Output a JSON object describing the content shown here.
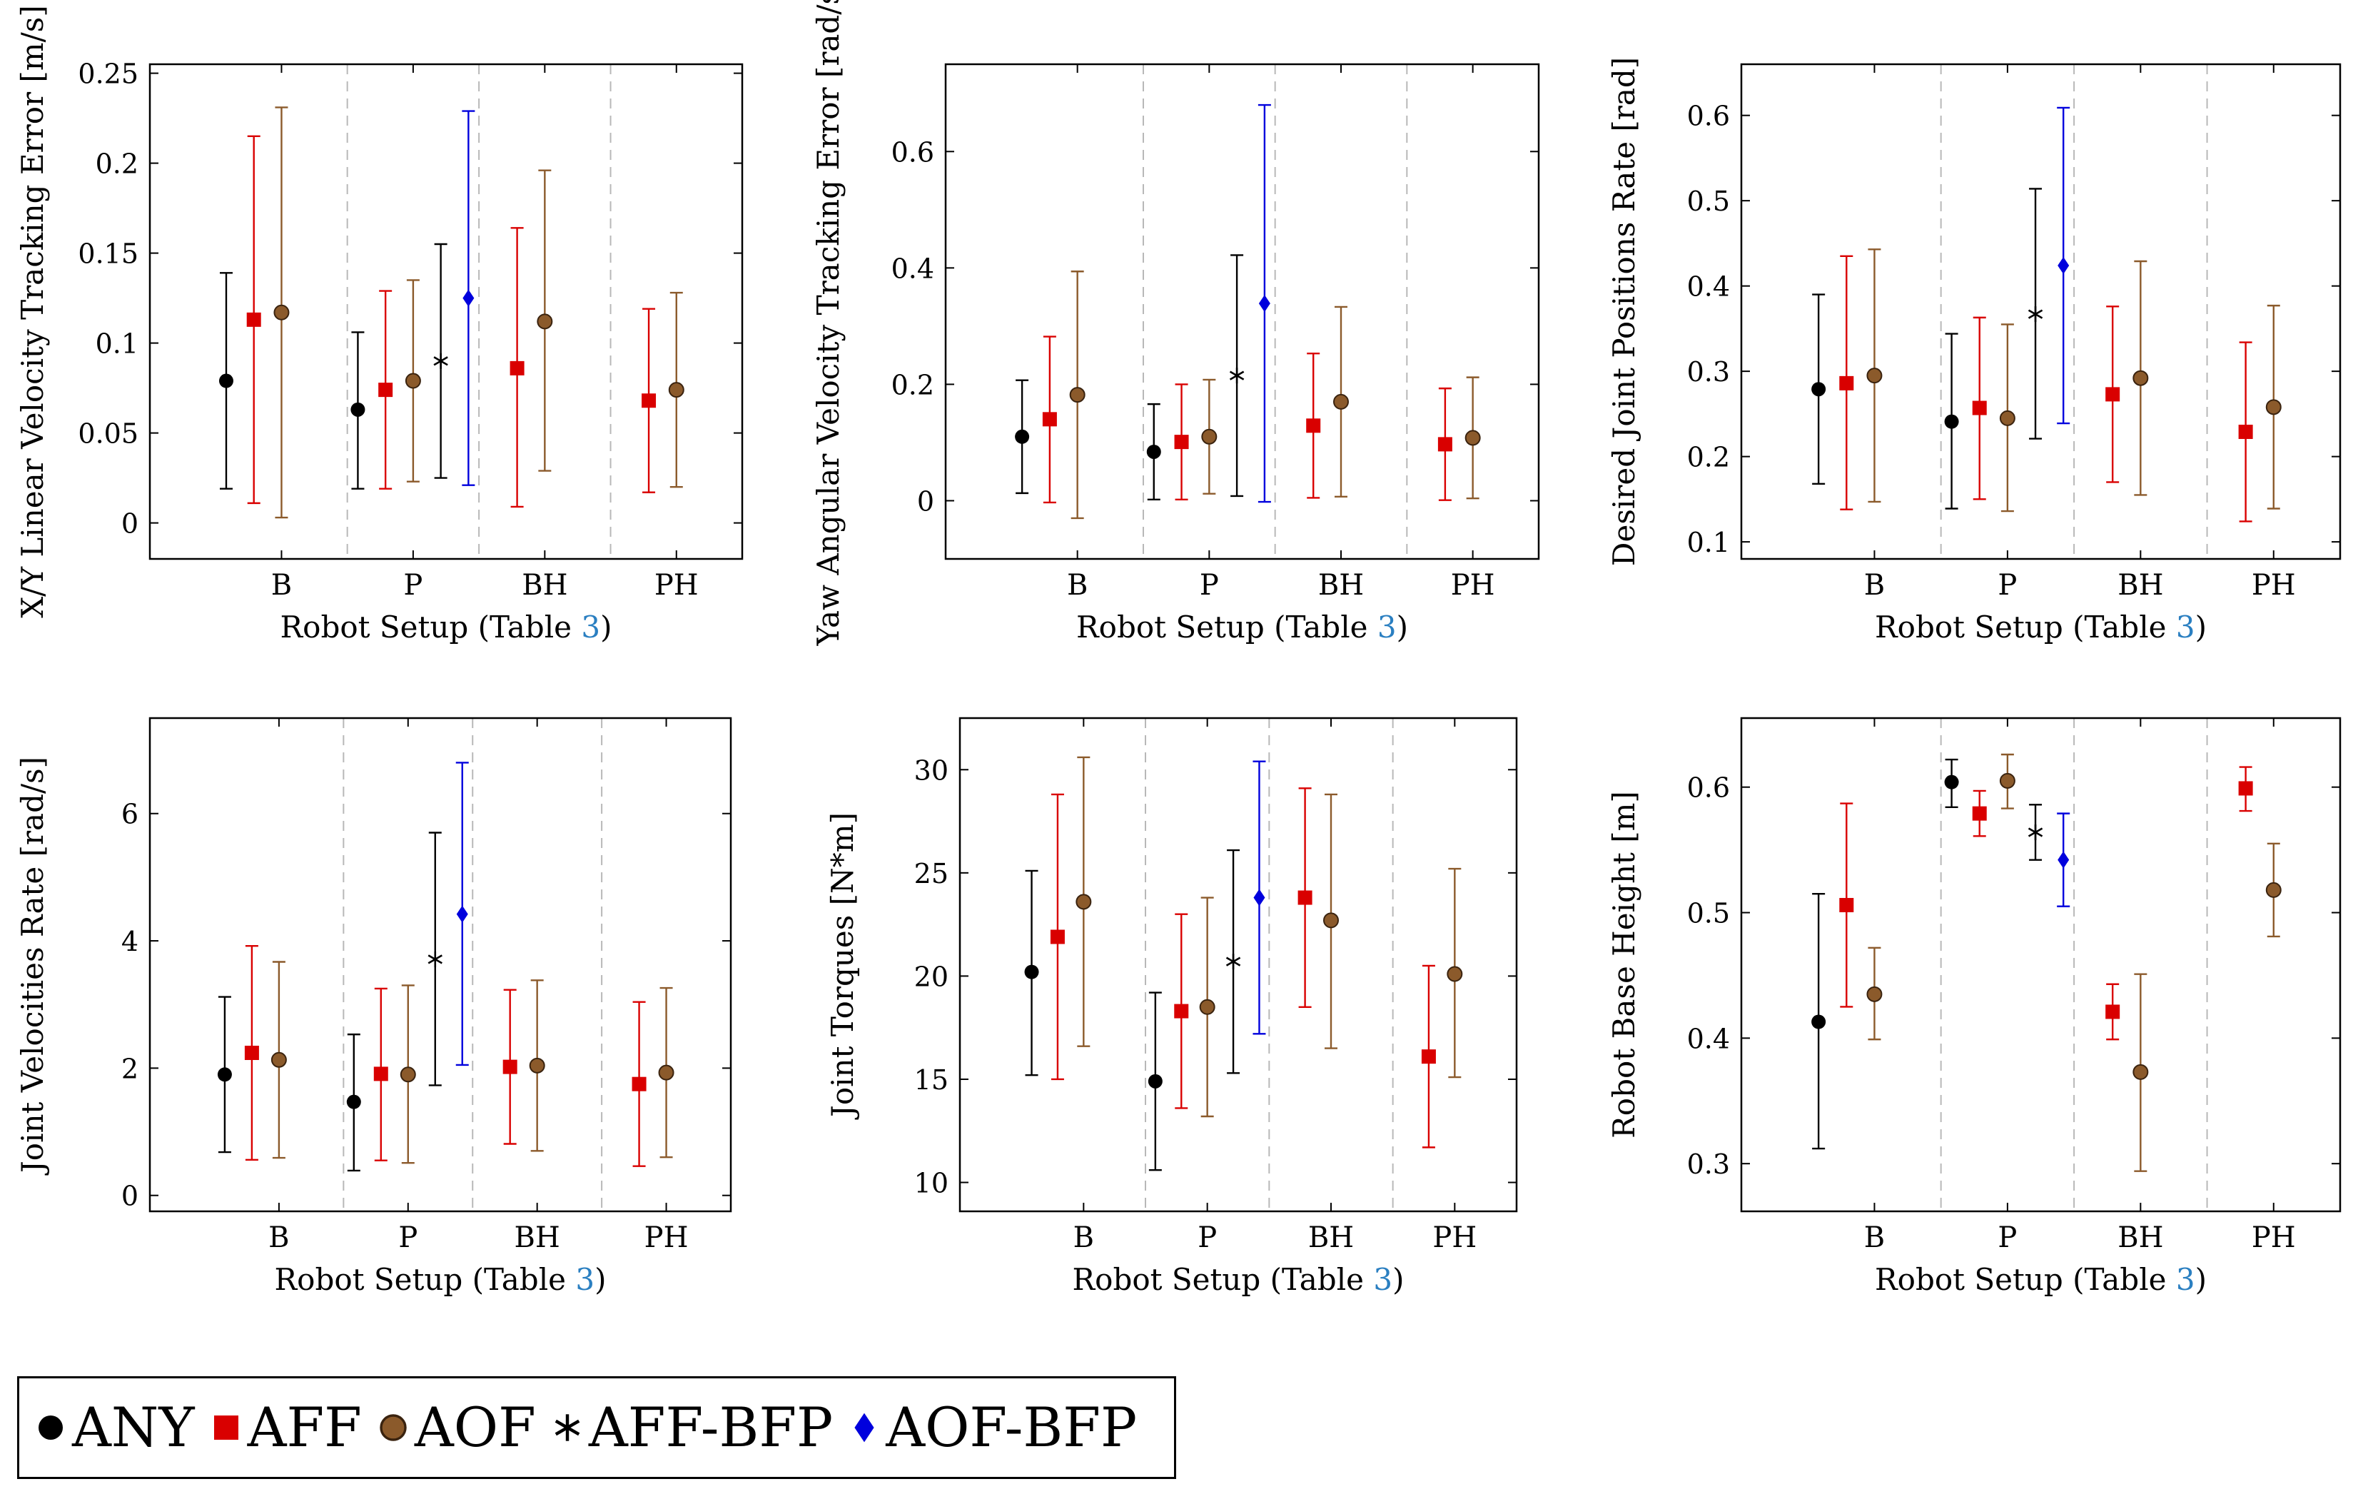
{
  "chart_data": [
    {
      "type": "scatter",
      "ylabel": "X/Y Linear Velocity Tracking Error [m/s]",
      "xlabel_prefix": "Robot Setup (Table ",
      "xlabel_ref": "3",
      "xlabel_suffix": ")",
      "categories": [
        "B",
        "P",
        "BH",
        "PH"
      ],
      "ylim": [
        -0.02,
        0.255
      ],
      "yticks": [
        0,
        0.05,
        0.1,
        0.15,
        0.2,
        0.25
      ],
      "ytick_labels": [
        "0",
        "0.05",
        "0.1",
        "0.15",
        "0.2",
        "0.25"
      ],
      "points": [
        {
          "series": "ANY",
          "category": "B",
          "y": 0.079,
          "low": 0.019,
          "high": 0.139
        },
        {
          "series": "AFF",
          "category": "B",
          "y": 0.113,
          "low": 0.011,
          "high": 0.215
        },
        {
          "series": "AOF",
          "category": "B",
          "y": 0.117,
          "low": 0.003,
          "high": 0.231
        },
        {
          "series": "ANY",
          "category": "P",
          "y": 0.063,
          "low": 0.019,
          "high": 0.106
        },
        {
          "series": "AFF",
          "category": "P",
          "y": 0.074,
          "low": 0.019,
          "high": 0.129
        },
        {
          "series": "AOF",
          "category": "P",
          "y": 0.079,
          "low": 0.023,
          "high": 0.135
        },
        {
          "series": "AFF-BFP",
          "category": "P",
          "y": 0.09,
          "low": 0.025,
          "high": 0.155
        },
        {
          "series": "AOF-BFP",
          "category": "P",
          "y": 0.125,
          "low": 0.021,
          "high": 0.229
        },
        {
          "series": "AFF",
          "category": "BH",
          "y": 0.086,
          "low": 0.009,
          "high": 0.164
        },
        {
          "series": "AOF",
          "category": "BH",
          "y": 0.112,
          "low": 0.029,
          "high": 0.196
        },
        {
          "series": "AFF",
          "category": "PH",
          "y": 0.068,
          "low": 0.017,
          "high": 0.119
        },
        {
          "series": "AOF",
          "category": "PH",
          "y": 0.074,
          "low": 0.02,
          "high": 0.128
        }
      ]
    },
    {
      "type": "scatter",
      "ylabel": "Yaw Angular Velocity Tracking Error [rad/s]",
      "xlabel_prefix": "Robot Setup (Table ",
      "xlabel_ref": "3",
      "xlabel_suffix": ")",
      "categories": [
        "B",
        "P",
        "BH",
        "PH"
      ],
      "ylim": [
        -0.1,
        0.75
      ],
      "yticks": [
        0,
        0.2,
        0.4,
        0.6
      ],
      "ytick_labels": [
        "0",
        "0.2",
        "0.4",
        "0.6"
      ],
      "points": [
        {
          "series": "ANY",
          "category": "B",
          "y": 0.11,
          "low": 0.013,
          "high": 0.207
        },
        {
          "series": "AFF",
          "category": "B",
          "y": 0.14,
          "low": -0.003,
          "high": 0.282
        },
        {
          "series": "AOF",
          "category": "B",
          "y": 0.182,
          "low": -0.03,
          "high": 0.394
        },
        {
          "series": "ANY",
          "category": "P",
          "y": 0.084,
          "low": 0.002,
          "high": 0.166
        },
        {
          "series": "AFF",
          "category": "P",
          "y": 0.101,
          "low": 0.002,
          "high": 0.2
        },
        {
          "series": "AOF",
          "category": "P",
          "y": 0.11,
          "low": 0.012,
          "high": 0.208
        },
        {
          "series": "AFF-BFP",
          "category": "P",
          "y": 0.215,
          "low": 0.008,
          "high": 0.422
        },
        {
          "series": "AOF-BFP",
          "category": "P",
          "y": 0.339,
          "low": -0.002,
          "high": 0.68
        },
        {
          "series": "AFF",
          "category": "BH",
          "y": 0.129,
          "low": 0.005,
          "high": 0.253
        },
        {
          "series": "AOF",
          "category": "BH",
          "y": 0.17,
          "low": 0.007,
          "high": 0.333
        },
        {
          "series": "AFF",
          "category": "PH",
          "y": 0.097,
          "low": 0.001,
          "high": 0.193
        },
        {
          "series": "AOF",
          "category": "PH",
          "y": 0.108,
          "low": 0.004,
          "high": 0.212
        }
      ]
    },
    {
      "type": "scatter",
      "ylabel": "Desired Joint Positions Rate [rad]",
      "xlabel_prefix": "Robot Setup (Table ",
      "xlabel_ref": "3",
      "xlabel_suffix": ")",
      "categories": [
        "B",
        "P",
        "BH",
        "PH"
      ],
      "ylim": [
        0.08,
        0.66
      ],
      "yticks": [
        0.1,
        0.2,
        0.3,
        0.4,
        0.5,
        0.6
      ],
      "ytick_labels": [
        "0.1",
        "0.2",
        "0.3",
        "0.4",
        "0.5",
        "0.6"
      ],
      "points": [
        {
          "series": "ANY",
          "category": "B",
          "y": 0.279,
          "low": 0.168,
          "high": 0.39
        },
        {
          "series": "AFF",
          "category": "B",
          "y": 0.286,
          "low": 0.138,
          "high": 0.435
        },
        {
          "series": "AOF",
          "category": "B",
          "y": 0.295,
          "low": 0.147,
          "high": 0.443
        },
        {
          "series": "ANY",
          "category": "P",
          "y": 0.241,
          "low": 0.139,
          "high": 0.344
        },
        {
          "series": "AFF",
          "category": "P",
          "y": 0.257,
          "low": 0.15,
          "high": 0.363
        },
        {
          "series": "AOF",
          "category": "P",
          "y": 0.245,
          "low": 0.136,
          "high": 0.355
        },
        {
          "series": "AFF-BFP",
          "category": "P",
          "y": 0.367,
          "low": 0.221,
          "high": 0.514
        },
        {
          "series": "AOF-BFP",
          "category": "P",
          "y": 0.424,
          "low": 0.239,
          "high": 0.609
        },
        {
          "series": "AFF",
          "category": "BH",
          "y": 0.273,
          "low": 0.17,
          "high": 0.376
        },
        {
          "series": "AOF",
          "category": "BH",
          "y": 0.292,
          "low": 0.155,
          "high": 0.429
        },
        {
          "series": "AFF",
          "category": "PH",
          "y": 0.229,
          "low": 0.124,
          "high": 0.334
        },
        {
          "series": "AOF",
          "category": "PH",
          "y": 0.258,
          "low": 0.139,
          "high": 0.377
        }
      ]
    },
    {
      "type": "scatter",
      "ylabel": "Joint Velocities Rate [rad/s]",
      "xlabel_prefix": "Robot Setup (Table ",
      "xlabel_ref": "3",
      "xlabel_suffix": ")",
      "categories": [
        "B",
        "P",
        "BH",
        "PH"
      ],
      "ylim": [
        -0.25,
        7.5
      ],
      "yticks": [
        0,
        2,
        4,
        6
      ],
      "ytick_labels": [
        "0",
        "2",
        "4",
        "6"
      ],
      "points": [
        {
          "series": "ANY",
          "category": "B",
          "y": 1.9,
          "low": 0.68,
          "high": 3.12
        },
        {
          "series": "AFF",
          "category": "B",
          "y": 2.24,
          "low": 0.56,
          "high": 3.92
        },
        {
          "series": "AOF",
          "category": "B",
          "y": 2.13,
          "low": 0.59,
          "high": 3.67
        },
        {
          "series": "ANY",
          "category": "P",
          "y": 1.47,
          "low": 0.39,
          "high": 2.53
        },
        {
          "series": "AFF",
          "category": "P",
          "y": 1.91,
          "low": 0.55,
          "high": 3.25
        },
        {
          "series": "AOF",
          "category": "P",
          "y": 1.9,
          "low": 0.51,
          "high": 3.3
        },
        {
          "series": "AFF-BFP",
          "category": "P",
          "y": 3.71,
          "low": 1.73,
          "high": 5.7
        },
        {
          "series": "AOF-BFP",
          "category": "P",
          "y": 4.42,
          "low": 2.05,
          "high": 6.8
        },
        {
          "series": "AFF",
          "category": "BH",
          "y": 2.02,
          "low": 0.81,
          "high": 3.23
        },
        {
          "series": "AOF",
          "category": "BH",
          "y": 2.04,
          "low": 0.7,
          "high": 3.38
        },
        {
          "series": "AFF",
          "category": "PH",
          "y": 1.75,
          "low": 0.46,
          "high": 3.04
        },
        {
          "series": "AOF",
          "category": "PH",
          "y": 1.93,
          "low": 0.6,
          "high": 3.26
        }
      ]
    },
    {
      "type": "scatter",
      "ylabel": "Joint Torques [N*m]",
      "xlabel_prefix": "Robot Setup (Table ",
      "xlabel_ref": "3",
      "xlabel_suffix": ")",
      "categories": [
        "B",
        "P",
        "BH",
        "PH"
      ],
      "ylim": [
        8.6,
        32.5
      ],
      "yticks": [
        10,
        15,
        20,
        25,
        30
      ],
      "ytick_labels": [
        "10",
        "15",
        "20",
        "25",
        "30"
      ],
      "points": [
        {
          "series": "ANY",
          "category": "B",
          "y": 20.2,
          "low": 15.2,
          "high": 25.1
        },
        {
          "series": "AFF",
          "category": "B",
          "y": 21.9,
          "low": 15.0,
          "high": 28.8
        },
        {
          "series": "AOF",
          "category": "B",
          "y": 23.6,
          "low": 16.6,
          "high": 30.6
        },
        {
          "series": "ANY",
          "category": "P",
          "y": 14.9,
          "low": 10.6,
          "high": 19.2
        },
        {
          "series": "AFF",
          "category": "P",
          "y": 18.3,
          "low": 13.6,
          "high": 23.0
        },
        {
          "series": "AOF",
          "category": "P",
          "y": 18.5,
          "low": 13.2,
          "high": 23.8
        },
        {
          "series": "AFF-BFP",
          "category": "P",
          "y": 20.7,
          "low": 15.3,
          "high": 26.1
        },
        {
          "series": "AOF-BFP",
          "category": "P",
          "y": 23.8,
          "low": 17.2,
          "high": 30.4
        },
        {
          "series": "AFF",
          "category": "BH",
          "y": 23.8,
          "low": 18.5,
          "high": 29.1
        },
        {
          "series": "AOF",
          "category": "BH",
          "y": 22.7,
          "low": 16.5,
          "high": 28.8
        },
        {
          "series": "AFF",
          "category": "PH",
          "y": 16.1,
          "low": 11.7,
          "high": 20.5
        },
        {
          "series": "AOF",
          "category": "PH",
          "y": 20.1,
          "low": 15.1,
          "high": 25.2
        }
      ]
    },
    {
      "type": "scatter",
      "ylabel": "Robot Base Height [m]",
      "xlabel_prefix": "Robot Setup (Table ",
      "xlabel_ref": "3",
      "xlabel_suffix": ")",
      "categories": [
        "B",
        "P",
        "BH",
        "PH"
      ],
      "ylim": [
        0.262,
        0.655
      ],
      "yticks": [
        0.3,
        0.4,
        0.5,
        0.6
      ],
      "ytick_labels": [
        "0.3",
        "0.4",
        "0.5",
        "0.6"
      ],
      "points": [
        {
          "series": "ANY",
          "category": "B",
          "y": 0.413,
          "low": 0.312,
          "high": 0.515
        },
        {
          "series": "AFF",
          "category": "B",
          "y": 0.506,
          "low": 0.425,
          "high": 0.587
        },
        {
          "series": "AOF",
          "category": "B",
          "y": 0.435,
          "low": 0.399,
          "high": 0.472
        },
        {
          "series": "ANY",
          "category": "P",
          "y": 0.604,
          "low": 0.584,
          "high": 0.622
        },
        {
          "series": "AFF",
          "category": "P",
          "y": 0.579,
          "low": 0.561,
          "high": 0.597
        },
        {
          "series": "AOF",
          "category": "P",
          "y": 0.605,
          "low": 0.583,
          "high": 0.626
        },
        {
          "series": "AFF-BFP",
          "category": "P",
          "y": 0.564,
          "low": 0.542,
          "high": 0.586
        },
        {
          "series": "AOF-BFP",
          "category": "P",
          "y": 0.542,
          "low": 0.505,
          "high": 0.579
        },
        {
          "series": "AFF",
          "category": "BH",
          "y": 0.421,
          "low": 0.399,
          "high": 0.443
        },
        {
          "series": "AOF",
          "category": "BH",
          "y": 0.373,
          "low": 0.294,
          "high": 0.451
        },
        {
          "series": "AFF",
          "category": "PH",
          "y": 0.599,
          "low": 0.581,
          "high": 0.616
        },
        {
          "series": "AOF",
          "category": "PH",
          "y": 0.518,
          "low": 0.481,
          "high": 0.555
        }
      ]
    }
  ],
  "legend": {
    "placement": "bottom-left",
    "entries": [
      {
        "label": "ANY",
        "marker": "circle",
        "color": "#000000"
      },
      {
        "label": "AFF",
        "marker": "square",
        "color": "#d90000"
      },
      {
        "label": "AOF",
        "marker": "brown-circle",
        "color": "#8b5a2b"
      },
      {
        "label": "AFF-BFP",
        "marker": "star",
        "color": "#000000"
      },
      {
        "label": "AOF-BFP",
        "marker": "diamond",
        "color": "#0000dd"
      }
    ]
  },
  "colors": {
    "ANY": "#000000",
    "AFF": "#d90000",
    "AOF": "#8b5a2b",
    "AFF-BFP": "#000000",
    "AOF-BFP": "#0000dd",
    "table_ref": "#2a7fc1",
    "divider": "#b8b8b8"
  }
}
